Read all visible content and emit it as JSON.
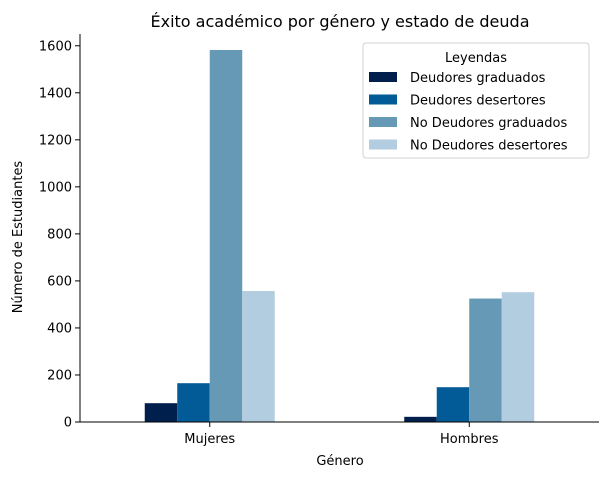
{
  "chart_data": {
    "type": "bar",
    "title": "Éxito académico por género y estado de deuda",
    "xlabel": "Género",
    "ylabel": "Número de Estudiantes",
    "categories": [
      "Mujeres",
      "Hombres"
    ],
    "ylim": [
      0,
      1650
    ],
    "yticks": [
      0,
      200,
      400,
      600,
      800,
      1000,
      1200,
      1400,
      1600
    ],
    "grid": false,
    "legend": {
      "title": "Leyendas",
      "placement": "top-right"
    },
    "series": [
      {
        "name": "Deudores graduados",
        "color": "#001f4d",
        "values": [
          80,
          22
        ]
      },
      {
        "name": "Deudores desertores",
        "color": "#025a96",
        "values": [
          165,
          148
        ]
      },
      {
        "name": "No Deudores graduados",
        "color": "#6699b6",
        "values": [
          1582,
          525
        ]
      },
      {
        "name": "No Deudores desertores",
        "color": "#b3cde0",
        "values": [
          557,
          552
        ]
      }
    ]
  }
}
